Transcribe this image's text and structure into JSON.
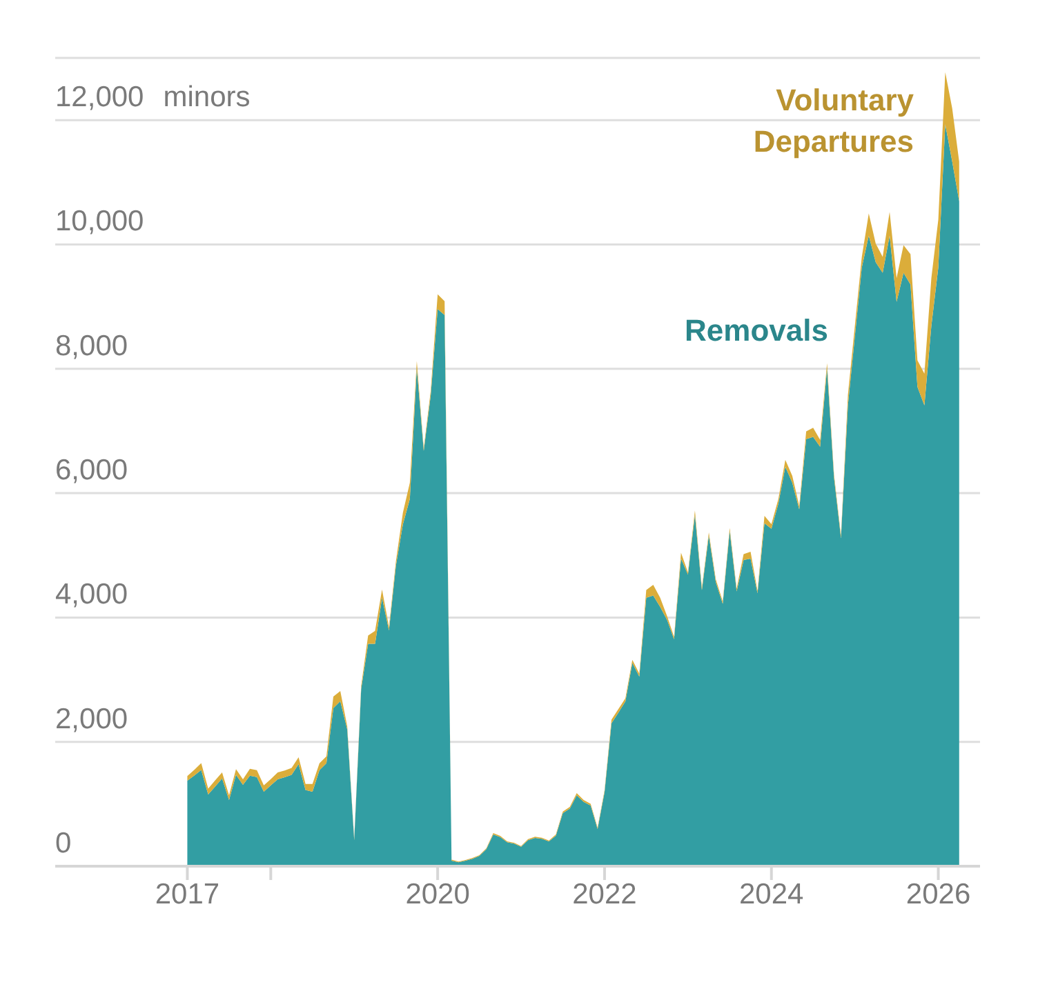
{
  "chart_data": {
    "type": "area",
    "stacked": true,
    "legend": false,
    "grid": "y",
    "ylabel": "minors",
    "x": [
      "2017-01",
      "2017-02",
      "2017-03",
      "2017-04",
      "2017-05",
      "2017-06",
      "2017-07",
      "2017-08",
      "2017-09",
      "2017-10",
      "2017-11",
      "2017-12",
      "2018-01",
      "2018-02",
      "2018-03",
      "2018-04",
      "2018-05",
      "2018-06",
      "2018-07",
      "2018-08",
      "2018-09",
      "2018-10",
      "2018-11",
      "2018-12",
      "2019-01",
      "2019-02",
      "2019-03",
      "2019-04",
      "2019-05",
      "2019-06",
      "2019-07",
      "2019-08",
      "2019-09",
      "2019-10",
      "2019-11",
      "2019-12",
      "2020-01",
      "2020-02",
      "2020-03",
      "2020-04",
      "2020-05",
      "2020-06",
      "2020-07",
      "2020-08",
      "2020-09",
      "2020-10",
      "2020-11",
      "2020-12",
      "2021-01",
      "2021-02",
      "2021-03",
      "2021-04",
      "2021-05",
      "2021-06",
      "2021-07",
      "2021-08",
      "2021-09",
      "2021-10",
      "2021-11",
      "2021-12",
      "2022-01",
      "2022-02",
      "2022-03",
      "2022-04",
      "2022-05",
      "2022-06",
      "2022-07",
      "2022-08",
      "2022-09",
      "2022-10",
      "2022-11",
      "2022-12",
      "2023-01",
      "2023-02",
      "2023-03",
      "2023-04",
      "2023-05",
      "2023-06",
      "2023-07",
      "2023-08",
      "2023-09",
      "2023-10",
      "2023-11",
      "2023-12",
      "2024-01",
      "2024-02",
      "2024-03",
      "2024-04",
      "2024-05",
      "2024-06",
      "2024-07",
      "2024-08",
      "2024-09",
      "2024-10",
      "2024-11",
      "2024-12",
      "2025-01",
      "2025-02",
      "2025-03",
      "2025-04",
      "2025-05",
      "2025-06",
      "2025-07",
      "2025-08",
      "2025-09",
      "2025-10",
      "2025-11",
      "2025-12",
      "2026-01",
      "2026-02",
      "2026-03",
      "2026-04"
    ],
    "series": [
      {
        "name": "Removals",
        "color": "#329ea3",
        "values": [
          1375,
          1460,
          1546,
          1153,
          1280,
          1412,
          1065,
          1471,
          1309,
          1457,
          1434,
          1198,
          1300,
          1397,
          1430,
          1471,
          1641,
          1227,
          1198,
          1545,
          1656,
          2543,
          2654,
          2200,
          420,
          2850,
          3578,
          3578,
          4318,
          3790,
          4835,
          5500,
          5907,
          8014,
          6680,
          7570,
          8961,
          8865,
          90,
          65,
          90,
          120,
          165,
          275,
          510,
          470,
          385,
          362,
          312,
          420,
          455,
          440,
          398,
          490,
          855,
          925,
          1140,
          1035,
          975,
          600,
          1190,
          2300,
          2470,
          2650,
          3270,
          3050,
          4318,
          4355,
          4170,
          3960,
          3650,
          4946,
          4690,
          5650,
          4440,
          5320,
          4570,
          4220,
          5390,
          4420,
          4924,
          4946,
          4390,
          5516,
          5427,
          5833,
          6425,
          6166,
          5740,
          6869,
          6905,
          6747,
          8007,
          6250,
          5280,
          7413,
          8522,
          9631,
          10141,
          9715,
          9544,
          10141,
          9076,
          9544,
          9356,
          7710,
          7413,
          8690,
          9631,
          11933,
          11334,
          10695
        ]
      },
      {
        "name": "Voluntary Departures",
        "color": "#dbad3a",
        "values": [
          75,
          90,
          111,
          96,
          100,
          96,
          74,
          89,
          88,
          110,
          111,
          103,
          100,
          111,
          110,
          111,
          111,
          97,
          126,
          111,
          111,
          185,
          163,
          50,
          20,
          50,
          133,
          207,
          133,
          60,
          74,
          185,
          259,
          111,
          41,
          75,
          236,
          221,
          14,
          9,
          10,
          13,
          12,
          13,
          22,
          18,
          14,
          15,
          13,
          16,
          18,
          18,
          16,
          20,
          25,
          29,
          36,
          30,
          30,
          21,
          30,
          58,
          60,
          50,
          50,
          48,
          125,
          170,
          148,
          62,
          39,
          96,
          34,
          72,
          40,
          48,
          43,
          39,
          51,
          45,
          96,
          111,
          39,
          118,
          74,
          74,
          111,
          111,
          56,
          125,
          148,
          111,
          86,
          54,
          41,
          168,
          168,
          168,
          359,
          299,
          255,
          384,
          384,
          444,
          488,
          426,
          510,
          770,
          767,
          836,
          854,
          639
        ]
      }
    ],
    "xlim": [
      "2015-06",
      "2026-07"
    ],
    "xticks": [
      "2017",
      {
        "value": "2018",
        "label": null
      },
      "2020",
      "2022",
      "2024",
      "2026"
    ],
    "ylim": [
      0,
      13000
    ],
    "yticks": [
      0,
      {
        "value": 2000,
        "label": "2,000"
      },
      {
        "value": 4000,
        "label": "4,000"
      },
      {
        "value": 6000,
        "label": "6,000"
      },
      {
        "value": 8000,
        "label": "8,000"
      },
      {
        "value": 10000,
        "label": "10,000"
      },
      {
        "value": 12000,
        "label": "12,000"
      }
    ]
  }
}
